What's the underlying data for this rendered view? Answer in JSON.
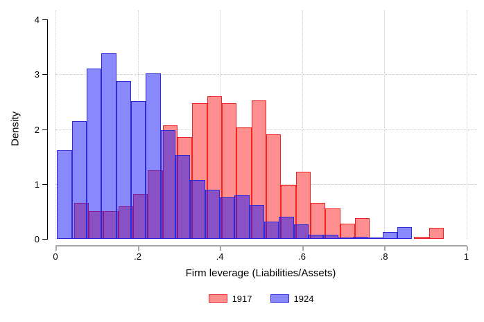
{
  "chart_data": {
    "type": "bar",
    "chart_kind": "overlaid-histogram",
    "title": "",
    "xlabel": "Firm leverage (Liabilities/Assets)",
    "ylabel": "Density",
    "xlim": [
      0,
      1
    ],
    "ylim": [
      0,
      4
    ],
    "x_tick_labels": [
      "0",
      ".2",
      ".4",
      ".6",
      ".8",
      "1"
    ],
    "x_tick_values": [
      0,
      0.2,
      0.4,
      0.6,
      0.8,
      1
    ],
    "y_tick_labels": [
      "0",
      "1",
      "2",
      "3",
      "4"
    ],
    "y_tick_values": [
      0,
      1,
      2,
      3,
      4
    ],
    "y_grid_values": [
      1,
      2,
      3
    ],
    "grid": "dotted",
    "legend_position": "bottom-center",
    "bin_width": 0.036,
    "series": [
      {
        "name": "1917",
        "fill": "rgba(255,30,30,0.5)",
        "border": "#f02323",
        "legend_fill": "#ff8e8e",
        "legend_border": "#f02323",
        "bin_start": 0.045,
        "heights": [
          0.65,
          0.51,
          0.51,
          0.59,
          0.82,
          1.25,
          2.07,
          1.85,
          2.47,
          2.6,
          2.47,
          2.03,
          2.52,
          1.91,
          0.99,
          1.22,
          0.65,
          0.55,
          0.28,
          0.38,
          0,
          0,
          0,
          0.04,
          0.2
        ]
      },
      {
        "name": "1924",
        "fill": "rgba(20,20,250,0.5)",
        "border": "#2b2bdb",
        "legend_fill": "#8989fc",
        "legend_border": "#2b2bdb",
        "bin_start": 0.004,
        "heights": [
          1.62,
          2.15,
          3.11,
          3.38,
          2.88,
          2.51,
          3.02,
          1.98,
          1.53,
          1.07,
          0.9,
          0.76,
          0.8,
          0.62,
          0.31,
          0.4,
          0.26,
          0.07,
          0.07,
          0.03,
          0.04,
          0.02,
          0.13,
          0.21
        ]
      }
    ]
  }
}
